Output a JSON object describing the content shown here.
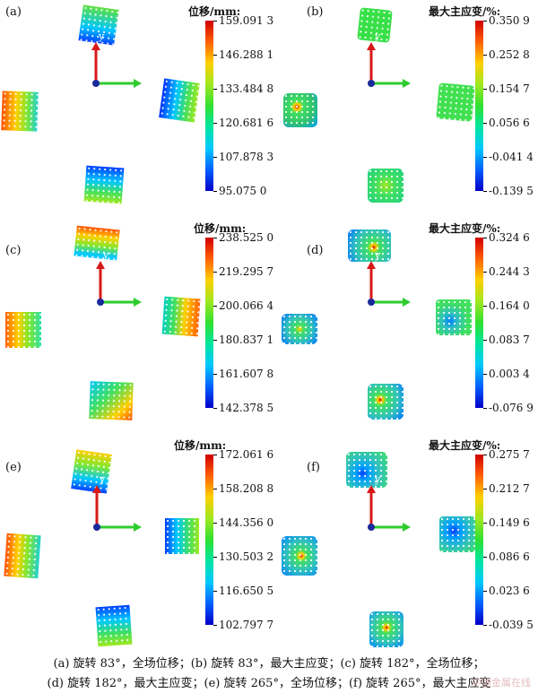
{
  "panels": {
    "a": {
      "label": "(a)",
      "colorbar_title": "位移/mm:",
      "ticks": [
        "159.091 3",
        "146.288 1",
        "133.484 8",
        "120.681 6",
        "107.878 3",
        "95.075 0"
      ]
    },
    "b": {
      "label": "(b)",
      "colorbar_title": "最大主应变/%:",
      "ticks": [
        "0.350 9",
        "0.252 8",
        "0.154 7",
        "0.056 6",
        "-0.041 4",
        "-0.139 5"
      ]
    },
    "c": {
      "label": "(c)",
      "colorbar_title": "位移/mm:",
      "ticks": [
        "238.525 0",
        "219.295 7",
        "200.066 4",
        "180.837 1",
        "161.607 8",
        "142.378 5"
      ]
    },
    "d": {
      "label": "(d)",
      "colorbar_title": "最大主应变/%:",
      "ticks": [
        "0.324 6",
        "0.244 3",
        "0.164 0",
        "0.083 7",
        "0.003 4",
        "-0.076 9"
      ]
    },
    "e": {
      "label": "(e)",
      "colorbar_title": "位移/mm:",
      "ticks": [
        "172.061 6",
        "158.208 8",
        "144.356 0",
        "130.503 2",
        "116.650 5",
        "102.797 7"
      ]
    },
    "f": {
      "label": "(f)",
      "colorbar_title": "最大主应变/%:",
      "ticks": [
        "0.275 7",
        "0.212 7",
        "0.149 6",
        "0.086 6",
        "0.023 6",
        "-0.039 5"
      ]
    }
  },
  "axis_label": "y",
  "caption": {
    "line1": "(a) 旋转 83°，全场位移；(b) 旋转 83°，最大主应变；(c) 旋转 182°，全场位移；",
    "line2": "(d) 旋转 182°，最大主应变；(e) 旋转 265°，全场位移；(f) 旋转 265°，最大主应变"
  },
  "watermark": "中国金属在线",
  "colors": {
    "jet": [
      "#0000c8",
      "#0060ff",
      "#00c8ff",
      "#00e6a0",
      "#30e030",
      "#a0e820",
      "#ffd000",
      "#ff6000",
      "#d00000"
    ],
    "x_axis": "#2ecc2e",
    "y_axis": "#d81818",
    "origin": "#1a2a9a"
  }
}
